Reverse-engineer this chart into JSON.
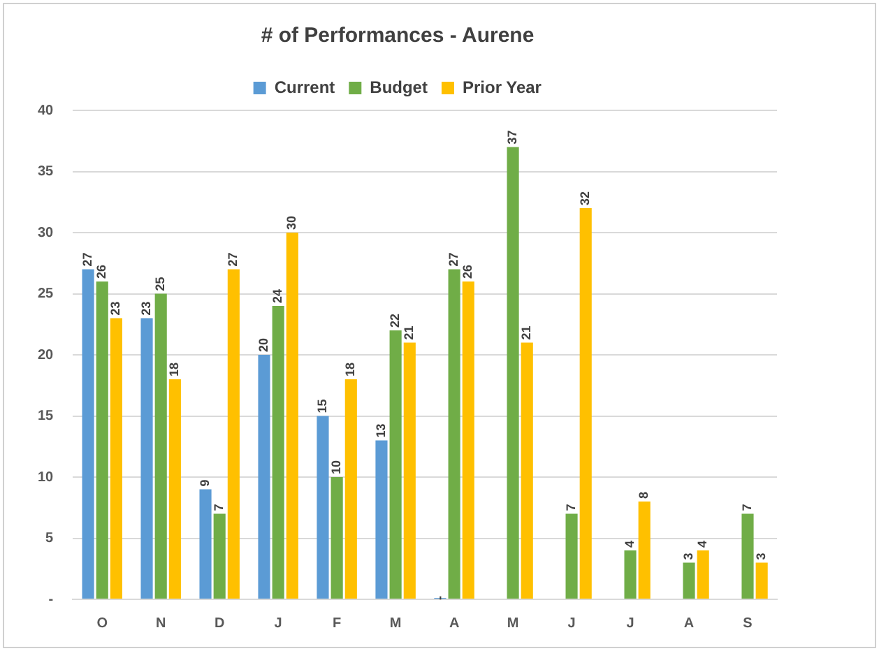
{
  "chart_data": {
    "type": "bar",
    "title": "# of Performances - Aurene",
    "categories": [
      "O",
      "N",
      "D",
      "J",
      "F",
      "M",
      "A",
      "M",
      "J",
      "J",
      "A",
      "S"
    ],
    "series": [
      {
        "name": "Current",
        "color": "#5b9bd5",
        "values": [
          27,
          23,
          9,
          20,
          15,
          13,
          0,
          null,
          null,
          null,
          null,
          null
        ],
        "value_labels": [
          "27",
          "23",
          "9",
          "20",
          "15",
          "13",
          "-",
          null,
          null,
          null,
          null,
          null
        ]
      },
      {
        "name": "Budget",
        "color": "#70ad47",
        "values": [
          26,
          25,
          7,
          24,
          10,
          22,
          27,
          37,
          7,
          4,
          3,
          7
        ],
        "value_labels": [
          "26",
          "25",
          "7",
          "24",
          "10",
          "22",
          "27",
          "37",
          "7",
          "4",
          "3",
          "7"
        ]
      },
      {
        "name": "Prior Year",
        "color": "#ffc000",
        "values": [
          23,
          18,
          27,
          30,
          18,
          21,
          26,
          21,
          32,
          8,
          4,
          3
        ],
        "value_labels": [
          "23",
          "18",
          "27",
          "30",
          "18",
          "21",
          "26",
          "21",
          "32",
          "8",
          "4",
          "3"
        ]
      }
    ],
    "ylim": [
      0,
      40
    ],
    "yticks": [
      {
        "value": 0,
        "label": "-"
      },
      5,
      10,
      15,
      20,
      25,
      30,
      35,
      40
    ],
    "grid": "y",
    "legend": "top"
  }
}
